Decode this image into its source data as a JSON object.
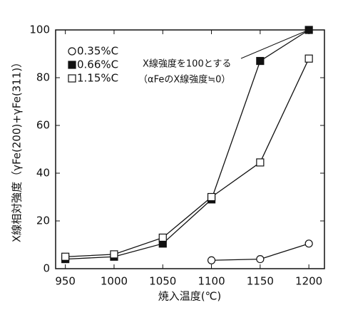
{
  "chart_data": {
    "type": "line",
    "x": [
      950,
      1000,
      1050,
      1100,
      1150,
      1200
    ],
    "xlim": [
      940,
      1216
    ],
    "xticks": [
      950,
      1000,
      1050,
      1100,
      1150,
      1200
    ],
    "ylim": [
      0,
      100
    ],
    "yticks": [
      0,
      20,
      40,
      60,
      80,
      100
    ],
    "x_label": "焼入温度(℃)",
    "y_label": "X線相対強度（γFe(200)+γFe(311)）",
    "annotation": [
      "X線強度を100とする",
      "（αFeのX線強度≒0）"
    ],
    "legend": "upper left",
    "series": [
      {
        "name": "0.35%C",
        "color": "#111111",
        "marker": "circle",
        "marker_fill": "#ffffff",
        "values": [
          null,
          null,
          null,
          3.5,
          4,
          10.5
        ]
      },
      {
        "name": "0.66%C",
        "color": "#111111",
        "marker": "square",
        "marker_fill": "#111111",
        "values": [
          4,
          5,
          10.5,
          29,
          87,
          100
        ]
      },
      {
        "name": "1.15%C",
        "color": "#111111",
        "marker": "square",
        "marker_fill": "#ffffff",
        "values": [
          5,
          6,
          13,
          30,
          44.5,
          88
        ]
      }
    ]
  }
}
